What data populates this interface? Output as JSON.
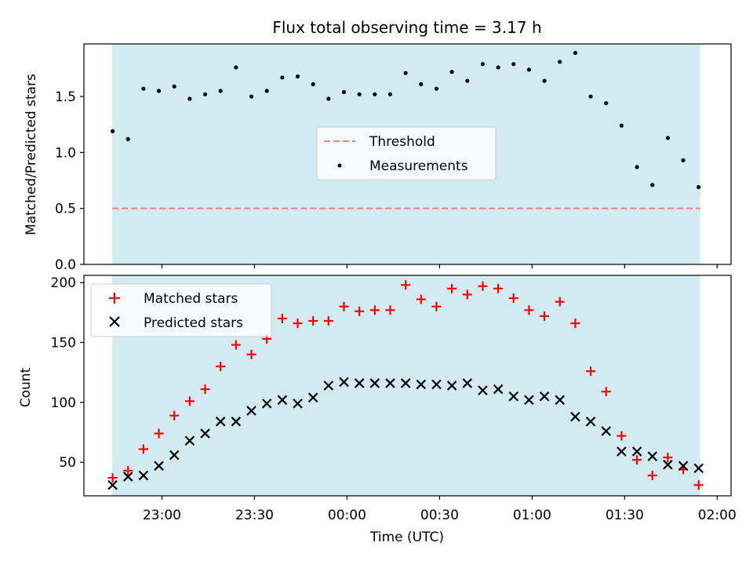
{
  "chart_data": [
    {
      "type": "scatter",
      "title": "Flux total observing time = 3.17 h",
      "xlabel": "",
      "ylabel": "Matched/Predicted stars",
      "ylim": [
        0,
        1.97
      ],
      "yticks": [
        0.0,
        0.5,
        1.0,
        1.5
      ],
      "ytick_labels": [
        "0.0",
        "0.5",
        "1.0",
        "1.5"
      ],
      "x_unit": "minutes relative to 00:00 UTC",
      "xlim": [
        -85.3,
        124.5
      ],
      "observing_window": [
        -76.1,
        114.5
      ],
      "window_color": "#add8e6",
      "grid": false,
      "legend": {
        "position": "center",
        "entries": [
          {
            "label": "Threshold",
            "marker": "dashed-line",
            "color": "#f08080"
          },
          {
            "label": "Measurements",
            "marker": "dot",
            "color": "#000000"
          }
        ]
      },
      "threshold": {
        "value": 0.5,
        "color": "#f08080"
      },
      "series": [
        {
          "name": "Measurements",
          "color": "#000000",
          "x": [
            -76,
            -71,
            -66,
            -61,
            -56,
            -51,
            -46,
            -41,
            -36,
            -31,
            -26,
            -21,
            -16,
            -11,
            -6,
            -1,
            4,
            9,
            14,
            19,
            24,
            29,
            34,
            39,
            44,
            49,
            54,
            59,
            64,
            69,
            74,
            79,
            84,
            89,
            94,
            99,
            104,
            109,
            114
          ],
          "y": [
            1.19,
            1.12,
            1.57,
            1.55,
            1.59,
            1.48,
            1.52,
            1.55,
            1.76,
            1.5,
            1.55,
            1.67,
            1.68,
            1.61,
            1.48,
            1.54,
            1.52,
            1.52,
            1.52,
            1.71,
            1.61,
            1.57,
            1.72,
            1.64,
            1.79,
            1.76,
            1.79,
            1.74,
            1.64,
            1.81,
            1.89,
            1.5,
            1.44,
            1.24,
            0.87,
            0.71,
            1.13,
            0.93,
            0.69
          ]
        }
      ]
    },
    {
      "type": "scatter",
      "title": "",
      "xlabel": "Time (UTC)",
      "ylabel": "Count",
      "ylim": [
        22,
        206
      ],
      "yticks": [
        50,
        100,
        150,
        200
      ],
      "ytick_labels": [
        "50",
        "100",
        "150",
        "200"
      ],
      "x_unit": "minutes relative to 00:00 UTC",
      "xlim": [
        -85.3,
        124.5
      ],
      "xticks": [
        -60,
        -30,
        0,
        30,
        60,
        90,
        120
      ],
      "xtick_labels": [
        "23:00",
        "23:30",
        "00:00",
        "00:30",
        "01:00",
        "01:30",
        "02:00"
      ],
      "observing_window": [
        -76.1,
        114.5
      ],
      "window_color": "#add8e6",
      "grid": false,
      "legend": {
        "position": "upper-left",
        "entries": [
          {
            "label": "Matched stars",
            "marker": "plus",
            "color": "#ff0000"
          },
          {
            "label": "Predicted stars",
            "marker": "x",
            "color": "#000000"
          }
        ]
      },
      "series": [
        {
          "name": "Matched stars",
          "marker": "plus",
          "color": "#ff0000",
          "x": [
            -76,
            -71,
            -66,
            -61,
            -56,
            -51,
            -46,
            -41,
            -36,
            -31,
            -26,
            -21,
            -16,
            -11,
            -6,
            -1,
            4,
            9,
            14,
            19,
            24,
            29,
            34,
            39,
            44,
            49,
            54,
            59,
            64,
            69,
            74,
            79,
            84,
            89,
            94,
            99,
            104,
            109,
            114
          ],
          "y": [
            37,
            43,
            61,
            74,
            89,
            101,
            111,
            130,
            148,
            140,
            153,
            170,
            166,
            168,
            168,
            180,
            176,
            177,
            177,
            198,
            186,
            180,
            195,
            190,
            197,
            195,
            187,
            177,
            172,
            184,
            166,
            126,
            109,
            72,
            52,
            39,
            54,
            44,
            31
          ]
        },
        {
          "name": "Predicted stars",
          "marker": "x",
          "color": "#000000",
          "x": [
            -76,
            -71,
            -66,
            -61,
            -56,
            -51,
            -46,
            -41,
            -36,
            -31,
            -26,
            -21,
            -16,
            -11,
            -6,
            -1,
            4,
            9,
            14,
            19,
            24,
            29,
            34,
            39,
            44,
            49,
            54,
            59,
            64,
            69,
            74,
            79,
            84,
            89,
            94,
            99,
            104,
            109,
            114
          ],
          "y": [
            31,
            38,
            39,
            47,
            56,
            68,
            74,
            84,
            84,
            93,
            99,
            102,
            99,
            104,
            114,
            117,
            116,
            116,
            116,
            116,
            115,
            115,
            114,
            116,
            110,
            111,
            105,
            102,
            105,
            102,
            88,
            84,
            76,
            59,
            59,
            55,
            48,
            47,
            45
          ]
        }
      ]
    }
  ]
}
